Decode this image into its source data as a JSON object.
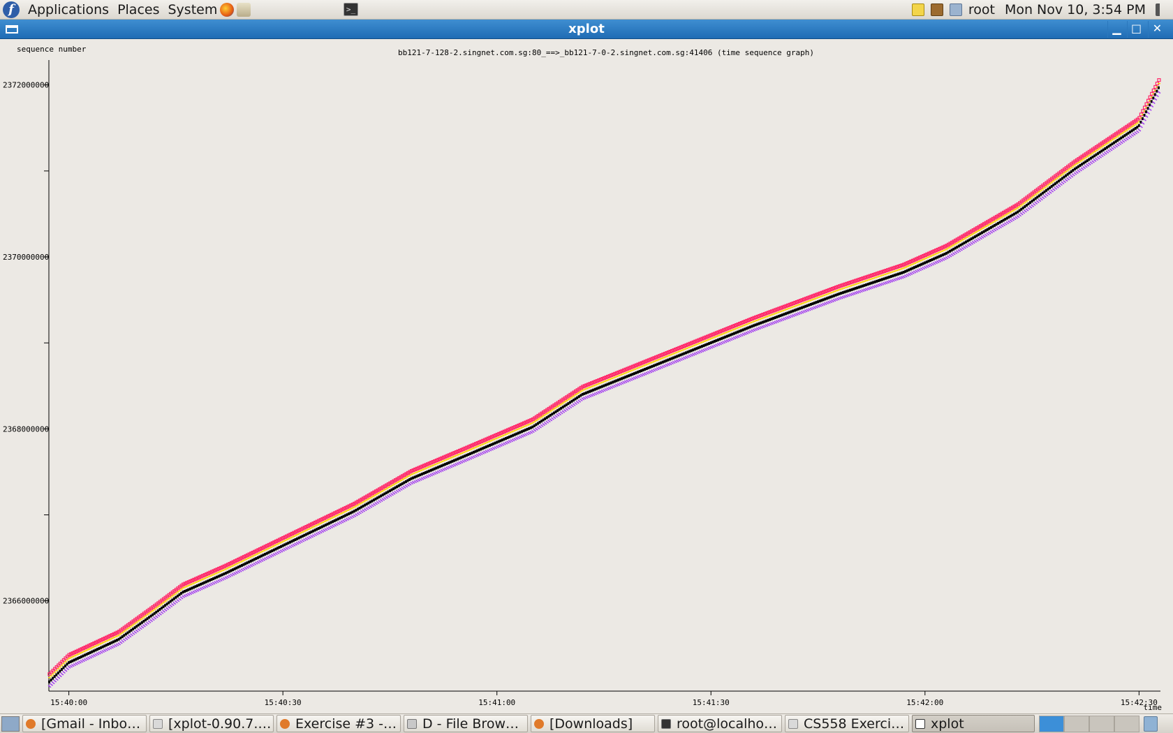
{
  "top_panel": {
    "menus": [
      "Applications",
      "Places",
      "System"
    ],
    "user": "root",
    "clock": "Mon Nov 10,  3:54 PM",
    "icons": [
      "fedora-logo-icon",
      "firefox-icon",
      "mail-icon",
      "terminal-icon",
      "notes-icon",
      "package-icon",
      "clipboard-icon",
      "volume-icon"
    ]
  },
  "window": {
    "title": "xplot",
    "controls": [
      "minimize-icon",
      "maximize-icon",
      "close-icon"
    ]
  },
  "chart_data": {
    "type": "scatter",
    "title": "bb121-7-128-2.singnet.com.sg:80_==>_bb121-7-0-2.singnet.com.sg:41406 (time sequence graph)",
    "ylabel": "sequence number",
    "xlabel": "time",
    "x_tick_labels": [
      "15:40:00",
      "15:40:30",
      "15:41:00",
      "15:41:30",
      "15:42:00",
      "15:42:30"
    ],
    "y_tick_labels": [
      "2372000000",
      "2370000000",
      "2368000000",
      "2366000000"
    ],
    "y_ticks": [
      2372000000,
      2371000000,
      2370000000,
      2369000000,
      2368000000,
      2367000000,
      2366000000
    ],
    "xlim_seconds_from_15_40_00": [
      -2.8,
      153
    ],
    "ylim": [
      2364950000,
      2372290000
    ],
    "series": [
      {
        "color": "#ff2a6a",
        "marker": "sack"
      },
      {
        "color": "#ffd400",
        "marker": "ack"
      },
      {
        "color": "#a23cf0",
        "marker": "window"
      },
      {
        "color": "#000000",
        "marker": "data"
      }
    ],
    "trend_points": [
      [
        -2.8,
        2365050000
      ],
      [
        0,
        2365280000
      ],
      [
        7,
        2365550000
      ],
      [
        12,
        2365850000
      ],
      [
        16,
        2366100000
      ],
      [
        22,
        2366320000
      ],
      [
        30,
        2366640000
      ],
      [
        40,
        2367040000
      ],
      [
        48,
        2367420000
      ],
      [
        56,
        2367700000
      ],
      [
        65,
        2368020000
      ],
      [
        72,
        2368400000
      ],
      [
        84,
        2368800000
      ],
      [
        96,
        2369200000
      ],
      [
        108,
        2369570000
      ],
      [
        117,
        2369820000
      ],
      [
        123,
        2370040000
      ],
      [
        133,
        2370520000
      ],
      [
        141,
        2371020000
      ],
      [
        150,
        2371520000
      ],
      [
        153,
        2372000000
      ]
    ]
  },
  "taskbar": {
    "tasks": [
      {
        "label": "[Gmail - Inbo…",
        "icon": "firefox-icon"
      },
      {
        "label": "[xplot-0.90.7.…",
        "icon": "text-editor-icon"
      },
      {
        "label": "Exercise #3 -…",
        "icon": "firefox-icon"
      },
      {
        "label": "D - File Brow…",
        "icon": "file-browser-icon"
      },
      {
        "label": "[Downloads]",
        "icon": "firefox-icon"
      },
      {
        "label": "root@localho…",
        "icon": "terminal-icon"
      },
      {
        "label": "CS558 Exerci…",
        "icon": "text-editor-icon"
      },
      {
        "label": "xplot",
        "icon": "window-icon",
        "active": true
      }
    ]
  }
}
